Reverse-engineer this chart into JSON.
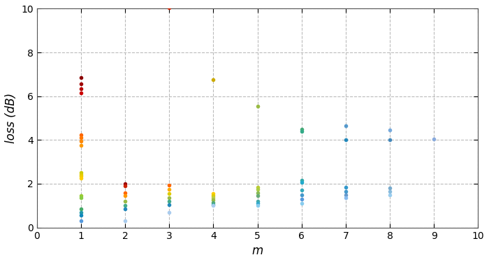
{
  "title": "",
  "xlabel": "m",
  "ylabel": "loss (dB)",
  "xlim": [
    0,
    10
  ],
  "ylim": [
    0,
    10
  ],
  "xticks": [
    0,
    1,
    2,
    3,
    4,
    5,
    6,
    7,
    8,
    9,
    10
  ],
  "yticks": [
    0,
    2,
    4,
    6,
    8,
    10
  ],
  "background_color": "#ffffff",
  "grid_color": "#aaaaaa",
  "series": [
    {
      "m": 1,
      "values": [
        6.85,
        6.55,
        6.35,
        6.15,
        4.25,
        4.1,
        3.95,
        3.75,
        2.5,
        2.4,
        2.35,
        2.25,
        1.45,
        1.35,
        0.85,
        0.7,
        0.55,
        0.3
      ],
      "colors": [
        "#8b0000",
        "#a00000",
        "#b80000",
        "#cc0000",
        "#ff6600",
        "#ff7700",
        "#ff8800",
        "#ff9900",
        "#cccc00",
        "#ddcc00",
        "#eecc00",
        "#ffcc00",
        "#99cc33",
        "#88cc44",
        "#44aa66",
        "#2299aa",
        "#1188bb",
        "#5599dd"
      ]
    },
    {
      "m": 2,
      "values": [
        2.0,
        1.9,
        1.6,
        1.45,
        1.2,
        1.0,
        0.85,
        0.3
      ],
      "colors": [
        "#990000",
        "#cc2200",
        "#ff6600",
        "#ff9900",
        "#99bb44",
        "#44aa88",
        "#2288bb",
        "#aaccee"
      ]
    },
    {
      "m": 3,
      "values": [
        10.05,
        1.95,
        1.75,
        1.55,
        1.35,
        1.2,
        1.05,
        0.7
      ],
      "colors": [
        "#cc2200",
        "#ff6600",
        "#ffaa00",
        "#ddcc00",
        "#99bb44",
        "#44aa88",
        "#2288bb",
        "#aaccee"
      ]
    },
    {
      "m": 4,
      "values": [
        6.75,
        1.55,
        1.45,
        1.35,
        1.25,
        1.15,
        1.05,
        1.0
      ],
      "colors": [
        "#ccaa00",
        "#ffcc00",
        "#ddcc00",
        "#bbcc44",
        "#99bb44",
        "#55aa77",
        "#33aaaa",
        "#aaccee"
      ]
    },
    {
      "m": 5,
      "values": [
        5.55,
        1.85,
        1.75,
        1.6,
        1.45,
        1.2,
        1.1,
        1.0
      ],
      "colors": [
        "#99bb44",
        "#bbcc33",
        "#aacc44",
        "#88bb55",
        "#66aa77",
        "#44aaaa",
        "#33aacc",
        "#88ccee"
      ]
    },
    {
      "m": 6,
      "values": [
        4.5,
        4.4,
        2.15,
        2.05,
        1.7,
        1.5,
        1.3,
        1.1
      ],
      "colors": [
        "#44aa77",
        "#33aa88",
        "#33aaaa",
        "#22aacc",
        "#33aabb",
        "#4499cc",
        "#5599dd",
        "#88ccee"
      ]
    },
    {
      "m": 7,
      "values": [
        4.65,
        4.0,
        1.85,
        1.65,
        1.5,
        1.35
      ],
      "colors": [
        "#5599cc",
        "#2288bb",
        "#3399cc",
        "#4499cc",
        "#6699cc",
        "#88bbee"
      ]
    },
    {
      "m": 8,
      "values": [
        4.45,
        4.0,
        1.8,
        1.65,
        1.5
      ],
      "colors": [
        "#77aadd",
        "#4488bb",
        "#77aacc",
        "#88bbdd",
        "#99ccee"
      ]
    },
    {
      "m": 9,
      "values": [
        4.05
      ],
      "colors": [
        "#88aadd"
      ]
    }
  ],
  "figsize": [
    7.0,
    3.75
  ],
  "dpi": 100
}
